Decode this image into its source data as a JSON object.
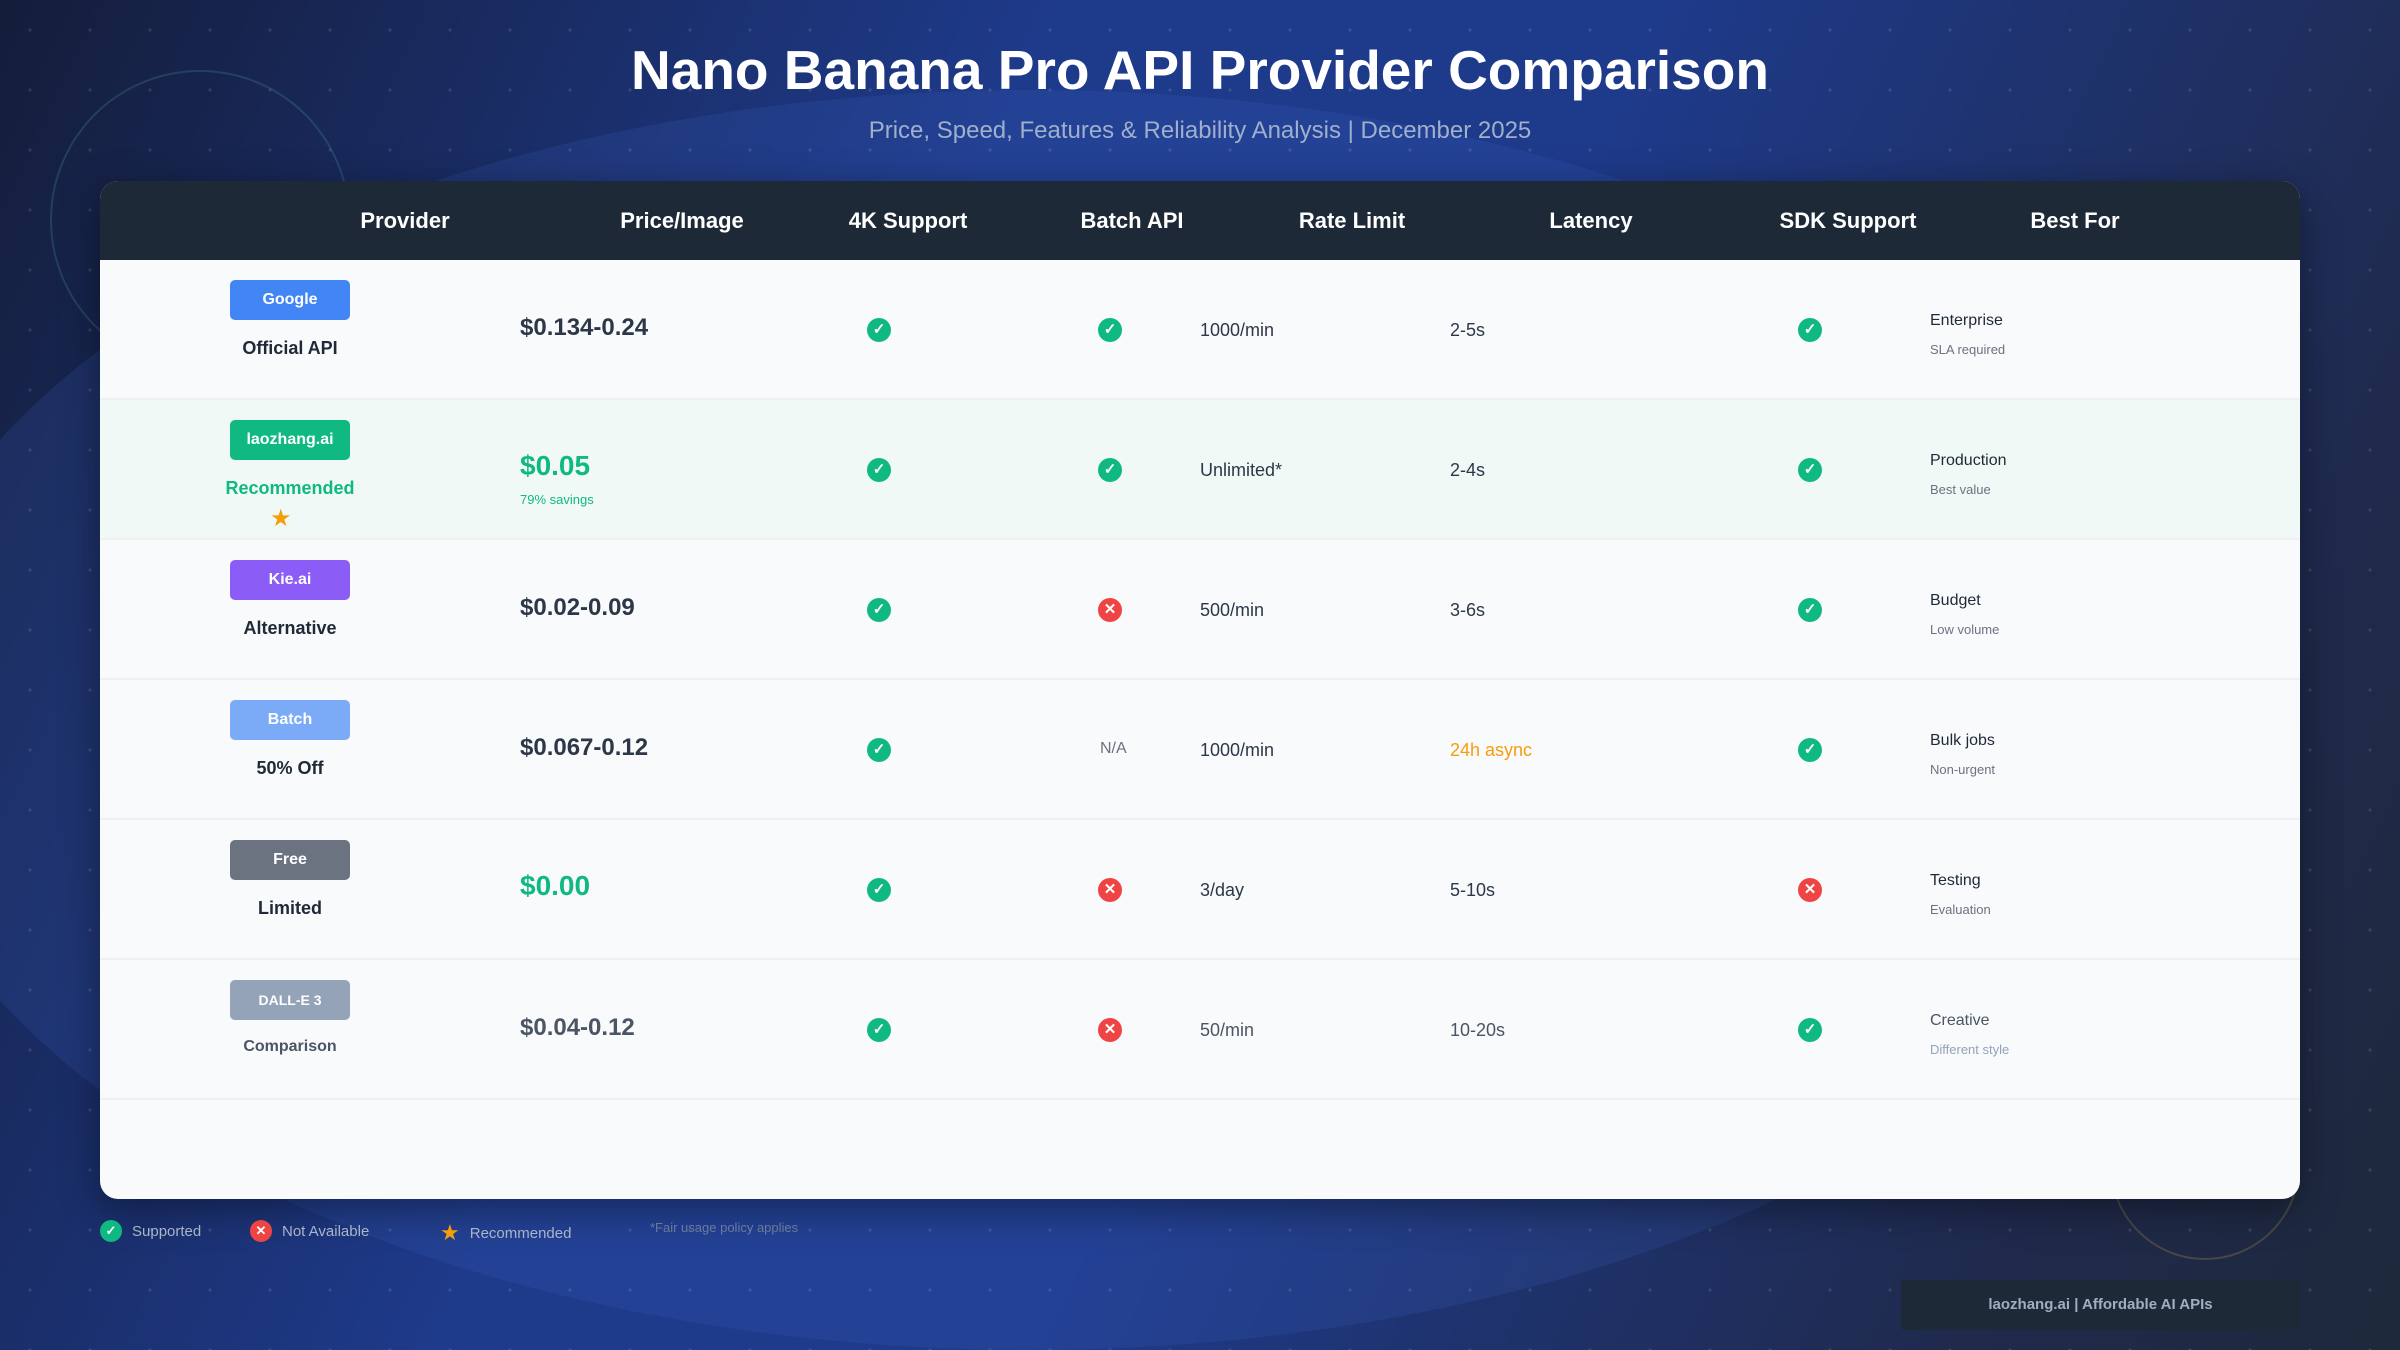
{
  "title": "Nano Banana Pro API Provider Comparison",
  "subtitle": "Price, Speed, Features & Reliability Analysis | December 2025",
  "columns": [
    "Provider",
    "Price/Image",
    "4K Support",
    "Batch API",
    "Rate Limit",
    "Latency",
    "SDK Support",
    "Best For"
  ],
  "rows": [
    {
      "badge": "Google",
      "badge_color": "#4285f4",
      "label": "Official API",
      "price": "$0.134-0.24",
      "k4": "yes",
      "batch": "yes",
      "rate": "1000/min",
      "latency": "2-5s",
      "sdk": "yes",
      "best": "Enterprise",
      "best_sub": "SLA required"
    },
    {
      "badge": "laozhang.ai",
      "badge_color": "#10b981",
      "label": "Recommended",
      "recommended": true,
      "price": "$0.05",
      "savings": "79% savings",
      "k4": "yes",
      "batch": "yes",
      "rate": "Unlimited*",
      "latency": "2-4s",
      "sdk": "yes",
      "best": "Production",
      "best_sub": "Best value"
    },
    {
      "badge": "Kie.ai",
      "badge_color": "#8b5cf6",
      "label": "Alternative",
      "price": "$0.02-0.09",
      "k4": "yes",
      "batch": "no",
      "rate": "500/min",
      "latency": "3-6s",
      "sdk": "yes",
      "best": "Budget",
      "best_sub": "Low volume"
    },
    {
      "badge": "Batch",
      "badge_color": "#7baaf7",
      "label": "50% Off",
      "price": "$0.067-0.12",
      "k4": "yes",
      "batch": "N/A",
      "rate": "1000/min",
      "latency": "24h async",
      "latency_color": "#f59e0b",
      "sdk": "yes",
      "best": "Bulk jobs",
      "best_sub": "Non-urgent"
    },
    {
      "badge": "Free",
      "badge_color": "#6b7280",
      "label": "Limited",
      "price": "$0.00",
      "price_green": true,
      "k4": "yes",
      "batch": "no",
      "rate": "3/day",
      "latency": "5-10s",
      "sdk": "no",
      "best": "Testing",
      "best_sub": "Evaluation"
    },
    {
      "badge": "DALL-E 3",
      "badge_color": "#94a3b8",
      "label": "Comparison",
      "muted": true,
      "price": "$0.04-0.12",
      "k4": "yes",
      "batch": "no",
      "rate": "50/min",
      "latency": "10-20s",
      "sdk": "yes",
      "best": "Creative",
      "best_sub": "Different style"
    }
  ],
  "legend": {
    "supported": "Supported",
    "not_available": "Not Available",
    "recommended": "Recommended",
    "note": "*Fair usage policy applies"
  },
  "footer": "laozhang.ai | Affordable AI APIs",
  "colors": {
    "supported": "#10b981",
    "not_available": "#ef4444",
    "recommended": "#f59e0b",
    "header": "#1e2937"
  }
}
